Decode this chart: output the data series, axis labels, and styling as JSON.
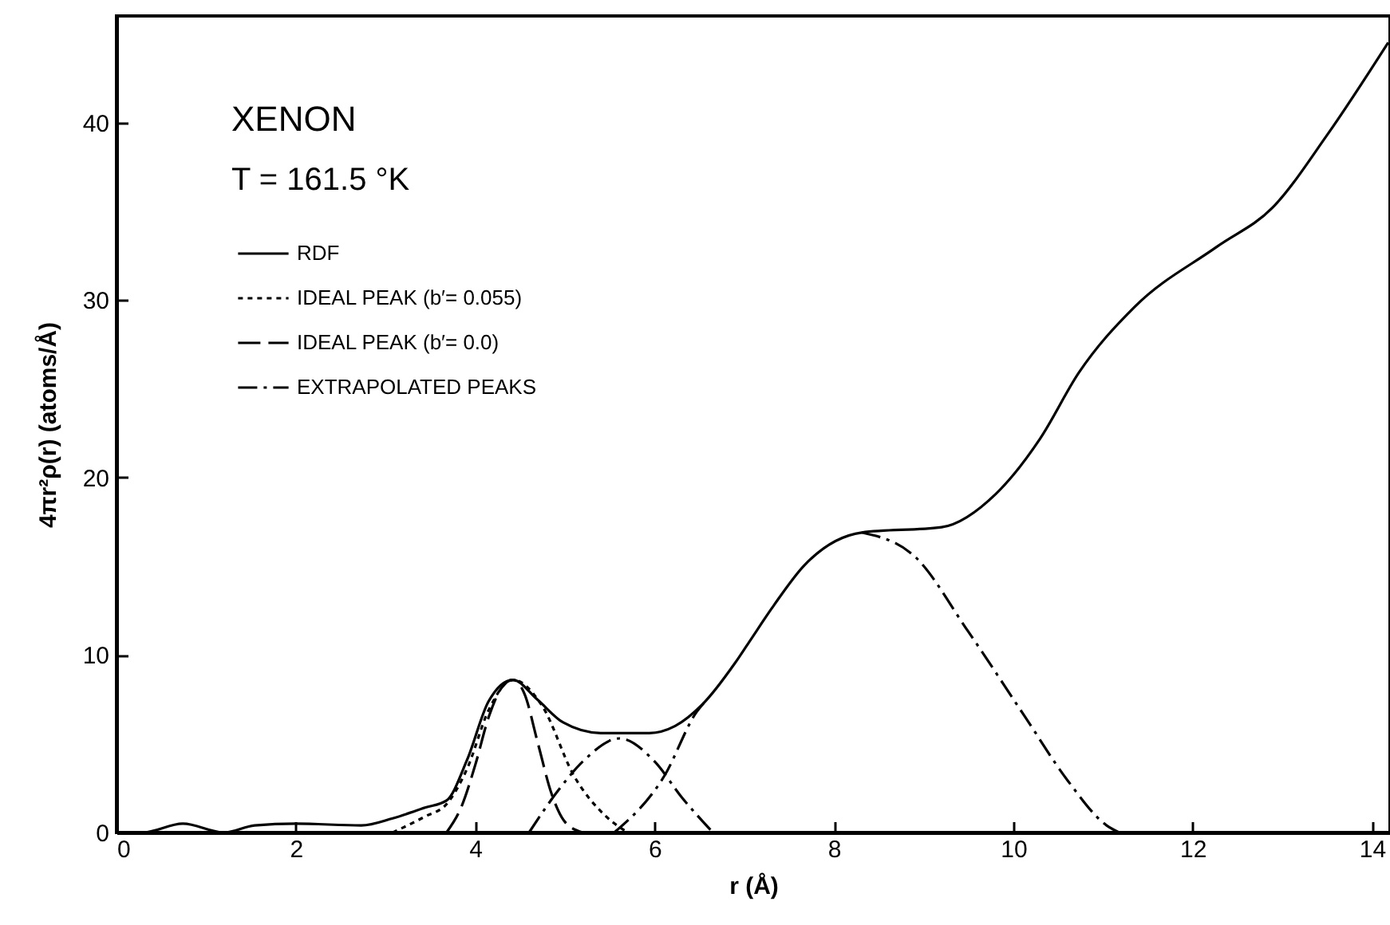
{
  "chart_data": {
    "type": "line",
    "title": "XENON",
    "subtitle": "T = 161.5 °K",
    "xlabel": "r (Å)",
    "ylabel": "4πr²ρ(r)   (atoms/Å)",
    "xlim": [
      0,
      14.2
    ],
    "ylim": [
      0,
      46
    ],
    "xticks": [
      0,
      2,
      4,
      6,
      8,
      10,
      12,
      14
    ],
    "yticks": [
      0,
      10,
      20,
      30,
      40
    ],
    "grid": false,
    "legend": "top left",
    "marker": "none",
    "series": [
      {
        "name": "RDF",
        "color": "#000000",
        "line_style": "solid",
        "x": [
          0,
          0.29,
          0.74,
          1.2,
          1.54,
          2.0,
          2.73,
          3.08,
          3.44,
          3.68,
          3.91,
          4.15,
          4.42,
          4.69,
          4.98,
          5.4,
          5.94,
          6.23,
          6.53,
          6.89,
          7.05,
          7.33,
          7.66,
          8.31,
          9.2,
          9.81,
          10.3,
          10.73,
          11.35,
          12.27,
          12.89,
          13.5,
          14.18
        ],
        "values": [
          0,
          0,
          0.5,
          0,
          0.4,
          0.5,
          0.4,
          0.8,
          1.4,
          1.8,
          4.1,
          7.4,
          8.6,
          7.5,
          6.2,
          5.6,
          5.6,
          6.0,
          7.2,
          9.5,
          10.7,
          12.8,
          15.0,
          16.9,
          17.2,
          19.1,
          22.2,
          25.9,
          29.6,
          33.0,
          35.2,
          39.3,
          44.5
        ]
      },
      {
        "name": "IDEAL PEAK (b′= 0.055)",
        "color": "#000000",
        "line_style": "dotted",
        "x": [
          3.08,
          3.44,
          3.68,
          3.91,
          4.15,
          4.42,
          4.75,
          5.1,
          5.46,
          5.7
        ],
        "values": [
          0,
          0.9,
          1.6,
          3.6,
          6.9,
          8.6,
          7.1,
          3.2,
          0.9,
          0
        ]
      },
      {
        "name": "IDEAL PEAK (b′= 0.0)",
        "color": "#000000",
        "line_style": "dashed",
        "x": [
          3.68,
          3.85,
          4.0,
          4.15,
          4.3,
          4.42,
          4.55,
          4.7,
          4.85,
          5.0,
          5.2
        ],
        "values": [
          0,
          1.5,
          3.8,
          6.5,
          8.2,
          8.6,
          7.8,
          5.0,
          2.2,
          0.6,
          0
        ]
      },
      {
        "name": "EXTRAPOLATED PEAKS",
        "color": "#000000",
        "line_style": "dashdot",
        "x": [
          4.6,
          4.93,
          5.2,
          5.61,
          6.0,
          6.3,
          6.65,
          null,
          5.55,
          6.11,
          6.47,
          6.55,
          null,
          8.31,
          8.89,
          9.5,
          10.12,
          10.61,
          11.04,
          11.18
        ],
        "values": [
          0,
          2.4,
          4.0,
          5.3,
          4.0,
          2.0,
          0,
          null,
          0,
          3.2,
          6.8,
          7.3,
          null,
          16.9,
          15.6,
          11.3,
          6.6,
          2.9,
          0.4,
          0
        ]
      }
    ]
  }
}
